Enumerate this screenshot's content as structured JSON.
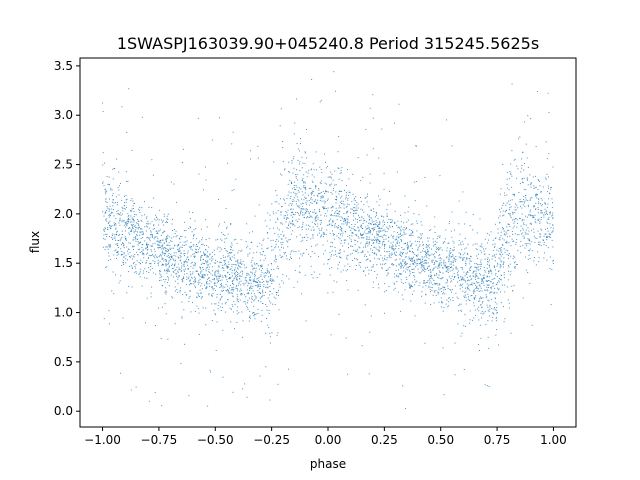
{
  "chart_data": {
    "type": "scatter",
    "title": "1SWASPJ163039.90+045240.8 Period 315245.5625s",
    "xlabel": "phase",
    "ylabel": "flux",
    "xlim": [
      -1.1,
      1.1
    ],
    "ylim": [
      -0.16,
      3.58
    ],
    "x_ticks": [
      -1.0,
      -0.75,
      -0.5,
      -0.25,
      0.0,
      0.25,
      0.5,
      0.75,
      1.0
    ],
    "x_tick_labels": [
      "−1.00",
      "−0.75",
      "−0.50",
      "−0.25",
      "0.00",
      "0.25",
      "0.50",
      "0.75",
      "1.00"
    ],
    "y_ticks": [
      0.0,
      0.5,
      1.0,
      1.5,
      2.0,
      2.5,
      3.0,
      3.5
    ],
    "y_tick_labels": [
      "0.0",
      "0.5",
      "1.0",
      "1.5",
      "2.0",
      "2.5",
      "3.0",
      "3.5"
    ],
    "grid": false,
    "marker_color": "#1f77b4",
    "series": [
      {
        "x": [
          -1.0,
          -0.95,
          -0.9,
          -0.85,
          -0.8,
          -0.75,
          -0.7,
          -0.65,
          -0.6,
          -0.55,
          -0.5,
          -0.45,
          -0.4,
          -0.35,
          -0.3,
          -0.25,
          -0.2,
          -0.15,
          -0.1,
          -0.05,
          0.0,
          0.05,
          0.1,
          0.15,
          0.2,
          0.25,
          0.3,
          0.35,
          0.4,
          0.45,
          0.5,
          0.55,
          0.6,
          0.65,
          0.7,
          0.75,
          0.8,
          0.85,
          0.9,
          0.95,
          1.0
        ],
        "y": [
          1.95,
          1.9,
          1.82,
          1.75,
          1.68,
          1.62,
          1.57,
          1.52,
          1.48,
          1.44,
          1.4,
          1.37,
          1.34,
          1.31,
          1.3,
          1.38,
          1.9,
          2.05,
          2.07,
          2.03,
          2.0,
          1.95,
          1.9,
          1.82,
          1.75,
          1.68,
          1.62,
          1.57,
          1.52,
          1.48,
          1.44,
          1.4,
          1.37,
          1.34,
          1.31,
          1.35,
          1.85,
          2.0,
          2.03,
          2.0,
          1.95
        ],
        "spread": [
          0.25,
          0.25,
          0.22,
          0.2,
          0.2,
          0.2,
          0.2,
          0.2,
          0.2,
          0.2,
          0.2,
          0.2,
          0.2,
          0.2,
          0.2,
          0.3,
          0.35,
          0.3,
          0.28,
          0.25,
          0.25,
          0.25,
          0.22,
          0.2,
          0.2,
          0.2,
          0.2,
          0.2,
          0.2,
          0.2,
          0.2,
          0.2,
          0.2,
          0.2,
          0.2,
          0.3,
          0.35,
          0.3,
          0.28,
          0.25,
          0.25
        ]
      }
    ]
  }
}
